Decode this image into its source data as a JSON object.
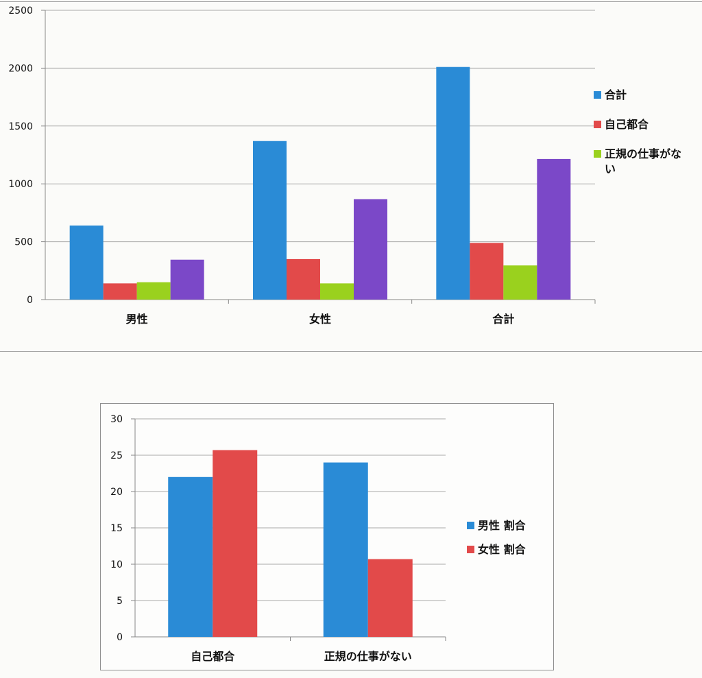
{
  "chart_data": [
    {
      "type": "bar",
      "categories": [
        "男性",
        "女性",
        "合計"
      ],
      "series": [
        {
          "name": "合計",
          "values": [
            640,
            1370,
            2010
          ],
          "color": "#2a8bd6"
        },
        {
          "name": "自己都合",
          "values": [
            140,
            350,
            490
          ],
          "color": "#e24a4a"
        },
        {
          "name": "正規の仕事がない",
          "values": [
            150,
            140,
            295
          ],
          "color": "#9ad11e"
        },
        {
          "name": "",
          "values": [
            345,
            868,
            1215
          ],
          "color": "#7b48c8"
        }
      ],
      "yticks": [
        "0",
        "500",
        "1000",
        "1500",
        "2000",
        "2500"
      ],
      "ylim": [
        0,
        2500
      ],
      "grid": true,
      "legend_position": "right"
    },
    {
      "type": "bar",
      "categories": [
        "自己都合",
        "正規の仕事がない"
      ],
      "series": [
        {
          "name": "男性 割合",
          "values": [
            22,
            24
          ],
          "color": "#2a8bd6"
        },
        {
          "name": "女性 割合",
          "values": [
            25.7,
            10.7
          ],
          "color": "#e24a4a"
        }
      ],
      "yticks": [
        "0",
        "5",
        "10",
        "15",
        "20",
        "25",
        "30"
      ],
      "ylim": [
        0,
        30
      ],
      "grid": true,
      "legend_position": "right"
    }
  ]
}
